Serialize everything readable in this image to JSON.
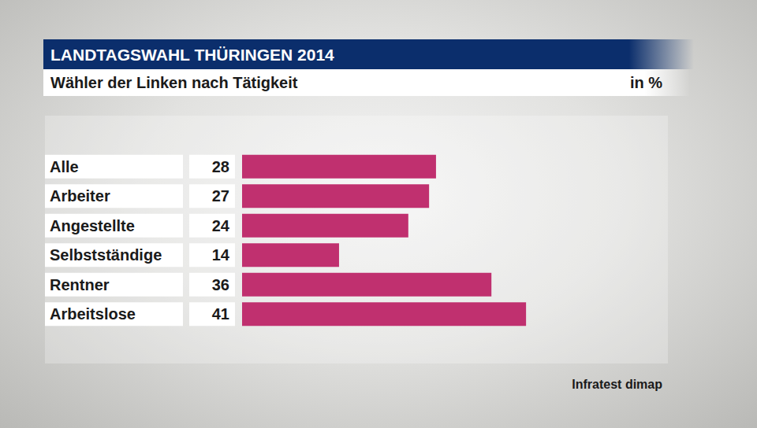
{
  "chart_data": {
    "type": "bar",
    "orientation": "horizontal",
    "title": "LANDTAGSWAHL THÜRINGEN 2014",
    "subtitle": "Wähler der Linken nach Tätigkeit",
    "unit": "in %",
    "source": "Infratest dimap",
    "categories": [
      "Alle",
      "Arbeiter",
      "Angestellte",
      "Selbstständige",
      "Rentner",
      "Arbeitslose"
    ],
    "values": [
      28,
      27,
      24,
      14,
      36,
      41
    ],
    "color": "#c0306f",
    "xlim": [
      0,
      60
    ],
    "grid": false,
    "data_labels": true,
    "tick_labels": "y"
  }
}
